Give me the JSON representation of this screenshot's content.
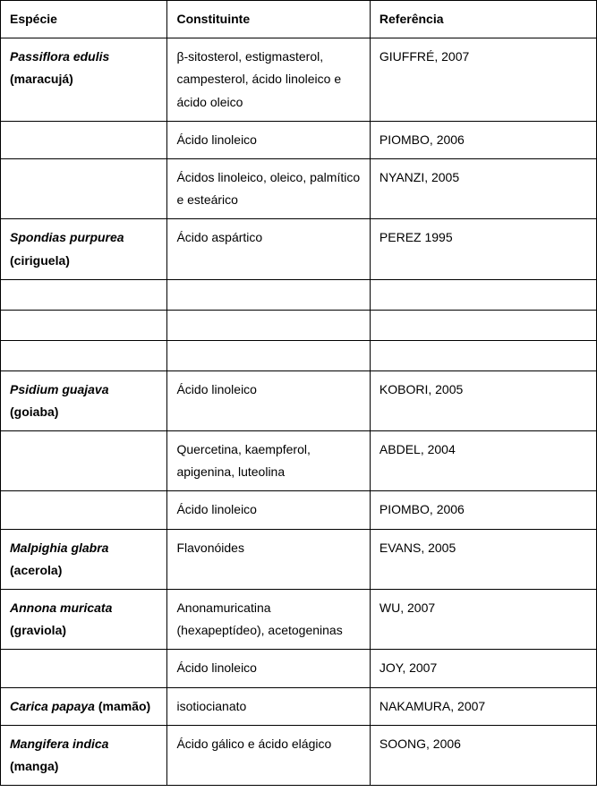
{
  "headers": {
    "col1": "Espécie",
    "col2": "Constituinte",
    "col3": "Referência"
  },
  "rows": [
    {
      "species_latin": "Passiflora edulis",
      "species_common": "(maracujá)",
      "constituent": "β-sitosterol, estigmasterol, campesterol, ácido linoleico e ácido oleico",
      "reference": "GIUFFRÉ, 2007"
    },
    {
      "species_latin": "",
      "species_common": "",
      "constituent": "Ácido linoleico",
      "reference": "PIOMBO, 2006"
    },
    {
      "species_latin": "",
      "species_common": "",
      "constituent": "Ácidos linoleico, oleico, palmítico e esteárico",
      "reference": "NYANZI, 2005"
    },
    {
      "species_latin": "Spondias purpurea",
      "species_common": "(ciriguela)",
      "constituent": "Ácido aspártico",
      "reference": "PEREZ 1995"
    },
    {
      "species_latin": "",
      "species_common": "",
      "constituent": "",
      "reference": ""
    },
    {
      "species_latin": "",
      "species_common": "",
      "constituent": "",
      "reference": ""
    },
    {
      "species_latin": "",
      "species_common": "",
      "constituent": "",
      "reference": ""
    },
    {
      "species_latin": "Psidium guajava",
      "species_common": "(goiaba)",
      "constituent": "Ácido linoleico",
      "reference": "KOBORI, 2005"
    },
    {
      "species_latin": "",
      "species_common": "",
      "constituent": "Quercetina, kaempferol, apigenina, luteolina",
      "reference": "ABDEL, 2004"
    },
    {
      "species_latin": "",
      "species_common": "",
      "constituent": "Ácido linoleico",
      "reference": "PIOMBO, 2006"
    },
    {
      "species_latin": "Malpighia glabra",
      "species_common": "(acerola)",
      "constituent": "Flavonóides",
      "reference": "EVANS, 2005"
    },
    {
      "species_latin": "Annona muricata",
      "species_common": "(graviola)",
      "constituent": "Anonamuricatina (hexapeptídeo), acetogeninas",
      "reference": "WU, 2007"
    },
    {
      "species_latin": "",
      "species_common": "",
      "constituent": "Ácido linoleico",
      "reference": "JOY, 2007"
    },
    {
      "species_latin": "Carica papaya",
      "species_common": "(mamão)",
      "constituent": "isotiocianato",
      "reference": "NAKAMURA, 2007"
    },
    {
      "species_latin": "Mangifera indica",
      "species_common": "(manga)",
      "constituent": "Ácido gálico e ácido elágico",
      "reference": "SOONG, 2006"
    }
  ]
}
